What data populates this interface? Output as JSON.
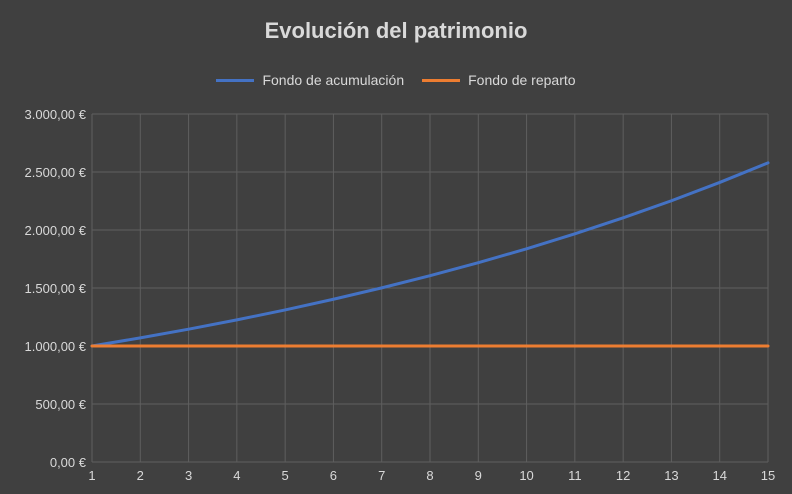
{
  "chart_data": {
    "type": "line",
    "title": "Evolución del patrimonio",
    "xlabel": "",
    "ylabel": "",
    "x": [
      1,
      2,
      3,
      4,
      5,
      6,
      7,
      8,
      9,
      10,
      11,
      12,
      13,
      14,
      15
    ],
    "xlim": [
      1,
      15
    ],
    "ylim": [
      0,
      3000
    ],
    "y_ticks": [
      0,
      500,
      1000,
      1500,
      2000,
      2500,
      3000
    ],
    "y_tick_labels": [
      "0,00 €",
      "500,00 €",
      "1.000,00 €",
      "1.500,00 €",
      "2.000,00 €",
      "2.500,00 €",
      "3.000,00 €"
    ],
    "x_tick_labels": [
      "1",
      "2",
      "3",
      "4",
      "5",
      "6",
      "7",
      "8",
      "9",
      "10",
      "11",
      "12",
      "13",
      "14",
      "15"
    ],
    "grid": true,
    "legend_position": "top",
    "series": [
      {
        "name": "Fondo de acumulación",
        "color": "#4472c4",
        "values": [
          1000,
          1070,
          1145,
          1225,
          1311,
          1403,
          1501,
          1606,
          1718,
          1838,
          1967,
          2105,
          2252,
          2410,
          2579
        ]
      },
      {
        "name": "Fondo de reparto",
        "color": "#ed7d31",
        "values": [
          1000,
          1000,
          1000,
          1000,
          1000,
          1000,
          1000,
          1000,
          1000,
          1000,
          1000,
          1000,
          1000,
          1000,
          1000
        ]
      }
    ]
  }
}
